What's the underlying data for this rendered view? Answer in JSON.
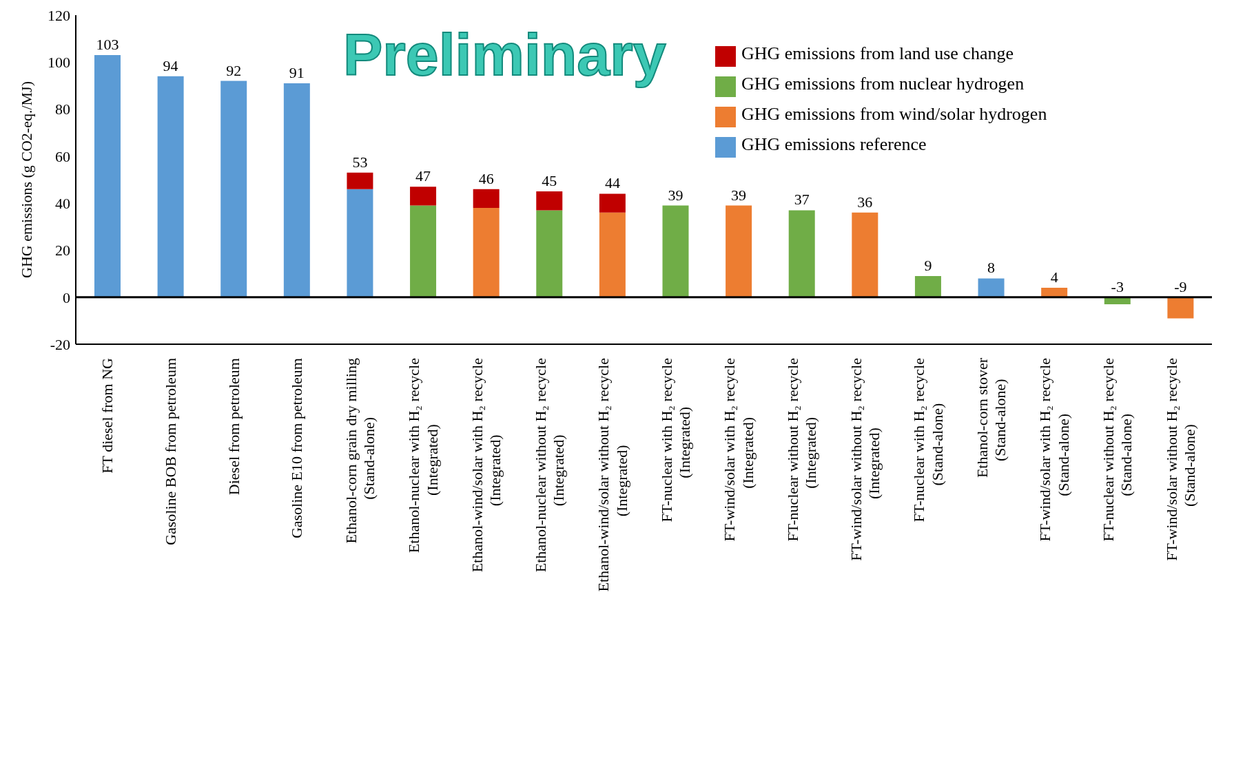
{
  "chart_data": {
    "type": "bar",
    "stacked": true,
    "ylabel": "GHG emissions (g CO2-eq./MJ)",
    "annotations": [
      "Preliminary"
    ],
    "categories": [
      "FT diesel from NG",
      "Gasoline BOB from petroleum",
      "Diesel from petroleum",
      "Gasoline E10 from petroleum",
      "Ethanol-corn grain dry milling\n(Stand-alone)",
      "Ethanol-nuclear with H₂ recycle\n(Integrated)",
      "Ethanol-wind/solar with H₂ recycle\n(Integrated)",
      "Ethanol-nuclear without H₂ recycle\n(Integrated)",
      "Ethanol-wind/solar without H₂ recycle\n(Integrated)",
      "FT-nuclear with H₂ recycle\n(Integrated)",
      "FT-wind/solar with H₂ recycle\n(Integrated)",
      "FT-nuclear without H₂ recycle\n(Integrated)",
      "FT-wind/solar without H₂ recycle\n(Integrated)",
      "FT-nuclear with H₂ recycle\n(Stand-alone)",
      "Ethanol-corn stover\n(Stand-alone)",
      "FT-wind/solar with H₂ recycle\n(Stand-alone)",
      "FT-nuclear without H₂ recycle\n(Stand-alone)",
      "FT-wind/solar without H₂ recycle\n(Stand-alone)"
    ],
    "series": [
      {
        "name": "GHG emissions reference",
        "color": "#5b9bd5",
        "values": [
          103,
          94,
          92,
          91,
          46,
          null,
          null,
          null,
          null,
          null,
          null,
          null,
          null,
          null,
          8,
          null,
          null,
          null
        ]
      },
      {
        "name": "GHG emissions from nuclear hydrogen",
        "color": "#70ad47",
        "values": [
          null,
          null,
          null,
          null,
          null,
          39,
          null,
          37,
          null,
          39,
          null,
          37,
          null,
          9,
          null,
          null,
          -3,
          null
        ]
      },
      {
        "name": "GHG emissions from wind/solar hydrogen",
        "color": "#ed7d31",
        "values": [
          null,
          null,
          null,
          null,
          null,
          null,
          38,
          null,
          36,
          null,
          39,
          null,
          36,
          null,
          null,
          4,
          null,
          -9
        ]
      },
      {
        "name": "GHG emissions from land use change",
        "color": "#c00000",
        "values": [
          null,
          null,
          null,
          null,
          7,
          8,
          8,
          8,
          8,
          null,
          null,
          null,
          null,
          null,
          null,
          null,
          null,
          null
        ]
      }
    ],
    "totals": [
      "103",
      "94",
      "92",
      "91",
      "53",
      "47",
      "46",
      "45",
      "44",
      "39",
      "39",
      "37",
      "36",
      "9",
      "8",
      "4",
      "-3",
      "-9"
    ],
    "ylim": [
      -20,
      120
    ],
    "yticks": [
      -20,
      0,
      20,
      40,
      60,
      80,
      100,
      120
    ],
    "ref_lines": [
      {
        "axis": "y",
        "value": 0,
        "color": "#000000"
      }
    ],
    "legend": "top right"
  }
}
